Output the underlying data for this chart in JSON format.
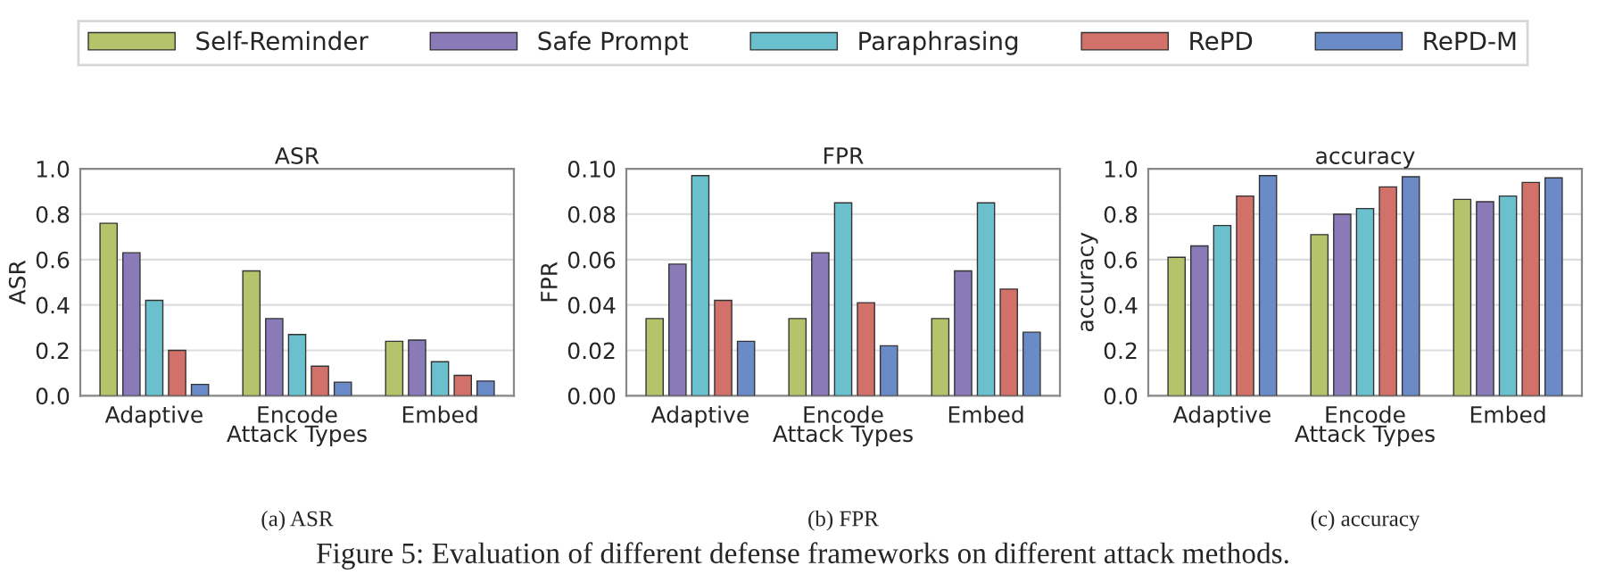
{
  "chart_data": [
    {
      "type": "bar",
      "title": "ASR",
      "xlabel": "Attack Types",
      "ylabel": "ASR",
      "categories": [
        "Adaptive",
        "Encode",
        "Embed"
      ],
      "ylim": [
        0,
        1.0
      ],
      "yticks": [
        {
          "value": 0,
          "label": "0.0"
        },
        0.2,
        0.4,
        0.6,
        0.8,
        {
          "value": 1,
          "label": "1.0"
        }
      ],
      "grid": "y",
      "legend": "top",
      "annotations": [
        "(a) ASR"
      ],
      "series": [
        {
          "name": "Self-Reminder",
          "color": "#b5c46a",
          "values": [
            0.76,
            0.55,
            0.24
          ]
        },
        {
          "name": "Safe Prompt",
          "color": "#8a7ab8",
          "values": [
            0.63,
            0.34,
            0.245
          ]
        },
        {
          "name": "Paraphrasing",
          "color": "#6ac0cc",
          "values": [
            0.42,
            0.27,
            0.15
          ]
        },
        {
          "name": "RePD",
          "color": "#d2706a",
          "values": [
            0.2,
            0.13,
            0.09
          ]
        },
        {
          "name": "RePD-M",
          "color": "#6a8ac8",
          "values": [
            0.05,
            0.06,
            0.065
          ]
        }
      ]
    },
    {
      "type": "bar",
      "title": "FPR",
      "xlabel": "Attack Types",
      "ylabel": "FPR",
      "categories": [
        "Adaptive",
        "Encode",
        "Embed"
      ],
      "ylim": [
        0,
        0.1
      ],
      "yticks": [
        {
          "value": 0,
          "label": "0.00"
        },
        0.02,
        0.04,
        0.06,
        0.08,
        {
          "value": 0.1,
          "label": "0.10"
        }
      ],
      "grid": "y",
      "annotations": [
        "(b) FPR",
        "Figure 5: Evaluation of different defense frameworks on different attack methods."
      ],
      "series": [
        {
          "color": "#b5c46a",
          "values": [
            0.034,
            0.034,
            0.034
          ]
        },
        {
          "color": "#8a7ab8",
          "values": [
            0.058,
            0.063,
            0.055
          ]
        },
        {
          "color": "#6ac0cc",
          "values": [
            0.097,
            0.085,
            0.085
          ]
        },
        {
          "color": "#d2706a",
          "values": [
            0.042,
            0.041,
            0.047
          ]
        },
        {
          "color": "#6a8ac8",
          "values": [
            0.024,
            0.022,
            0.028
          ]
        }
      ]
    },
    {
      "type": "bar",
      "title": "accuracy",
      "xlabel": "Attack Types",
      "ylabel": "accuracy",
      "categories": [
        "Adaptive",
        "Encode",
        "Embed"
      ],
      "ylim": [
        0,
        1.0
      ],
      "yticks": [
        {
          "value": 0,
          "label": "0.0"
        },
        0.2,
        0.4,
        0.6,
        0.8,
        {
          "value": 1,
          "label": "1.0"
        }
      ],
      "grid": "y",
      "annotations": [
        "(c) accuracy"
      ],
      "series": [
        {
          "color": "#b5c46a",
          "values": [
            0.61,
            0.71,
            0.865
          ]
        },
        {
          "color": "#8a7ab8",
          "values": [
            0.66,
            0.8,
            0.855
          ]
        },
        {
          "color": "#6ac0cc",
          "values": [
            0.75,
            0.825,
            0.88
          ]
        },
        {
          "color": "#d2706a",
          "values": [
            0.88,
            0.92,
            0.94
          ]
        },
        {
          "color": "#6a8ac8",
          "values": [
            0.97,
            0.965,
            0.96
          ]
        }
      ]
    }
  ]
}
